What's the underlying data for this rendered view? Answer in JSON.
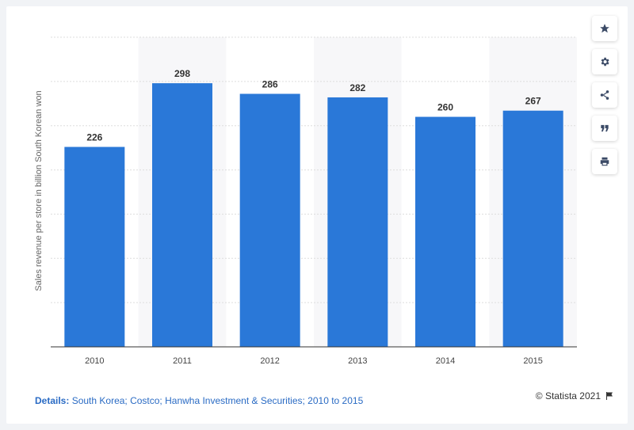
{
  "chart_data": {
    "type": "bar",
    "categories": [
      "2010",
      "2011",
      "2012",
      "2013",
      "2014",
      "2015"
    ],
    "values": [
      226,
      298,
      286,
      282,
      260,
      267
    ],
    "ylabel": "Sales revenue per store in billion South Korean won",
    "ylim": [
      0,
      350
    ],
    "grid": true,
    "bar_color": "#2a78d8"
  },
  "toolbar": {
    "icons": [
      "star-icon",
      "gear-icon",
      "share-icon",
      "quote-icon",
      "print-icon"
    ]
  },
  "footer": {
    "details_label": "Details:",
    "details_text": "South Korea; Costco; Hanwha Investment & Securities; 2010 to 2015",
    "credit": "© Statista 2021"
  }
}
